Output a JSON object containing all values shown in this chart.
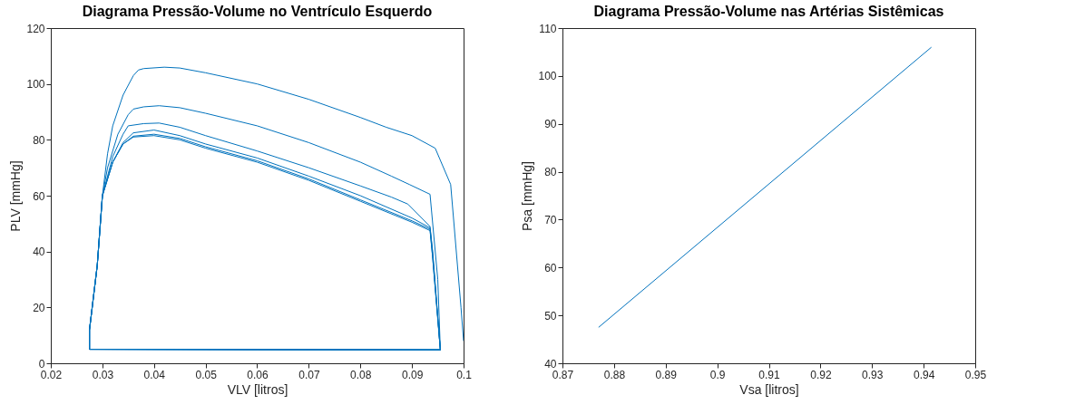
{
  "chart_data": [
    {
      "type": "line",
      "title": "Diagrama Pressão-Volume no Ventrículo Esquerdo",
      "xlabel": "VLV [litros]",
      "ylabel": "PLV [mmHg]",
      "xlim": [
        0.02,
        0.1
      ],
      "xticks": [
        0.02,
        0.03,
        0.04,
        0.05,
        0.06,
        0.07,
        0.08,
        0.09,
        0.1
      ],
      "ylim": [
        0,
        120
      ],
      "yticks": [
        0,
        20,
        40,
        60,
        80,
        100,
        120
      ],
      "series": [
        {
          "color": "#0072bd",
          "x": [
            0.1,
            0.0995,
            0.0975,
            0.0945,
            0.09,
            0.085,
            0.08,
            0.07,
            0.06,
            0.05,
            0.045,
            0.042,
            0.038,
            0.037,
            0.036,
            0.034,
            0.032,
            0.031,
            0.03,
            0.029,
            0.0275,
            0.0275,
            0.06,
            0.0955,
            0.095,
            0.0935,
            0.0895,
            0.086,
            0.08,
            0.07,
            0.06,
            0.05,
            0.045,
            0.041,
            0.038,
            0.036,
            0.035,
            0.033,
            0.031,
            0.03,
            0.029,
            0.0275,
            0.0275,
            0.0955,
            0.094,
            0.0935,
            0.0892,
            0.086,
            0.08,
            0.07,
            0.06,
            0.05,
            0.045,
            0.041,
            0.038,
            0.035,
            0.034,
            0.032,
            0.03,
            0.029,
            0.0275,
            0.0275,
            0.0955,
            0.094,
            0.0935,
            0.09,
            0.08,
            0.07,
            0.06,
            0.05,
            0.045,
            0.04,
            0.036,
            0.034,
            0.032,
            0.03,
            0.029,
            0.0275,
            0.0275,
            0.0955,
            0.094,
            0.0935,
            0.09,
            0.08,
            0.07,
            0.06,
            0.05,
            0.045,
            0.04,
            0.036,
            0.034,
            0.032,
            0.03,
            0.029,
            0.0275,
            0.0275,
            0.0955,
            0.094,
            0.0935,
            0.09,
            0.08,
            0.07,
            0.06,
            0.05,
            0.045,
            0.04,
            0.036,
            0.034,
            0.032,
            0.03,
            0.029,
            0.0275,
            0.0275
          ],
          "values": [
            8,
            20,
            64,
            77,
            81.5,
            84.5,
            88,
            94.5,
            100,
            104,
            105.7,
            106,
            105.5,
            105,
            103,
            96,
            85,
            75,
            60,
            35,
            12,
            5,
            4.9,
            4.8,
            30,
            60.5,
            64,
            67,
            72,
            79,
            85,
            89.5,
            91.5,
            92.2,
            91.8,
            91,
            89,
            82,
            70,
            60,
            35,
            12,
            5,
            4.8,
            40,
            49,
            57,
            59.5,
            63.5,
            70,
            76,
            81.5,
            84.5,
            86,
            85.8,
            85,
            82,
            74,
            60,
            35,
            12,
            5,
            4.8,
            40,
            48.5,
            52,
            60,
            67,
            73.5,
            78.5,
            81.5,
            83.5,
            82.5,
            79,
            72,
            60,
            35,
            12,
            5,
            4.8,
            38,
            48,
            51,
            58.5,
            66,
            72.5,
            77.5,
            80.5,
            82,
            81.3,
            78.5,
            72,
            60,
            35,
            12,
            5,
            4.8,
            38,
            47.5,
            50.5,
            58,
            65.5,
            72,
            77,
            80,
            81.5,
            81,
            78.5,
            72,
            60,
            35,
            12,
            5
          ]
        }
      ]
    },
    {
      "type": "line",
      "title": "Diagrama Pressão-Volume nas Artérias Sistêmicas",
      "xlabel": "Vsa [litros]",
      "ylabel": "Psa [mmHg]",
      "xlim": [
        0.87,
        0.95
      ],
      "xticks": [
        0.87,
        0.88,
        0.89,
        0.9,
        0.91,
        0.92,
        0.93,
        0.94,
        0.95
      ],
      "ylim": [
        40,
        110
      ],
      "yticks": [
        40,
        50,
        60,
        70,
        80,
        90,
        100,
        110
      ],
      "series": [
        {
          "color": "#0072bd",
          "x": [
            0.877,
            0.9415
          ],
          "values": [
            47.5,
            106
          ]
        }
      ]
    }
  ]
}
